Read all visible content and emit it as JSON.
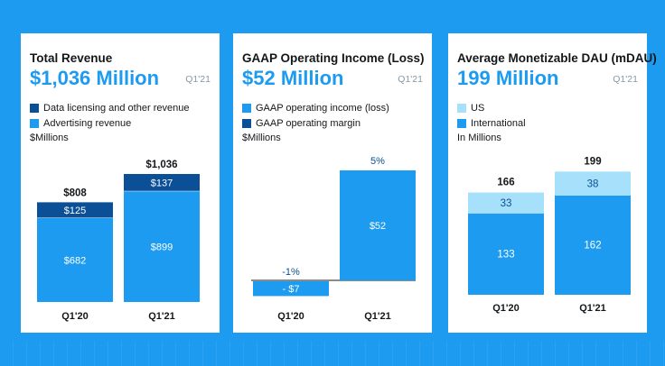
{
  "colors": {
    "background": "#1d9bf0",
    "primary_bar": "#1d9bf0",
    "dark_bar": "#0b4f96",
    "light_bar": "#a6e0fb",
    "headline": "#1d9bf0"
  },
  "chart_data": [
    {
      "type": "bar",
      "stacked": true,
      "title": "Total Revenue",
      "headline": "$1,036 Million",
      "period": "Q1'21",
      "units": "$Millions",
      "categories": [
        "Q1'20",
        "Q1'21"
      ],
      "series": [
        {
          "name": "Advertising revenue",
          "values": [
            682,
            899
          ],
          "labels": [
            "$682",
            "$899"
          ],
          "color": "#1d9bf0",
          "label_color": "#ffffff"
        },
        {
          "name": "Data licensing and other revenue",
          "values": [
            125,
            137
          ],
          "labels": [
            "$125",
            "$137"
          ],
          "color": "#0b4f96",
          "label_color": "#ffffff"
        }
      ],
      "legend": [
        {
          "label": "Data licensing and other revenue",
          "color": "#0b4f96"
        },
        {
          "label": "Advertising revenue",
          "color": "#1d9bf0"
        }
      ],
      "totals": [
        "$808",
        "$1,036"
      ],
      "ylim": [
        0,
        1036
      ]
    },
    {
      "type": "bar",
      "title": "GAAP Operating Income (Loss)",
      "headline": "$52 Million",
      "period": "Q1'21",
      "units": "$Millions",
      "categories": [
        "Q1'20",
        "Q1'21"
      ],
      "series": [
        {
          "name": "GAAP operating income (loss)",
          "values": [
            -7,
            52
          ],
          "labels": [
            "- $7",
            "$52"
          ],
          "color": "#1d9bf0",
          "label_color": "#ffffff"
        }
      ],
      "legend": [
        {
          "label": "GAAP operating income (loss)",
          "color": "#1d9bf0"
        },
        {
          "label": "GAAP operating margin",
          "color": "#0b4f96"
        }
      ],
      "margins": [
        "-1%",
        "5%"
      ],
      "ylim": [
        -7,
        52
      ]
    },
    {
      "type": "bar",
      "stacked": true,
      "title": "Average Monetizable DAU (mDAU)",
      "headline": "199 Million",
      "period": "Q1'21",
      "units": "In Millions",
      "categories": [
        "Q1'20",
        "Q1'21"
      ],
      "series": [
        {
          "name": "International",
          "values": [
            133,
            162
          ],
          "labels": [
            "133",
            "162"
          ],
          "color": "#1d9bf0",
          "label_color": "#ffffff"
        },
        {
          "name": "US",
          "values": [
            33,
            38
          ],
          "labels": [
            "33",
            "38"
          ],
          "color": "#a6e0fb",
          "label_color": "#0b4f96"
        }
      ],
      "legend": [
        {
          "label": "US",
          "color": "#a6e0fb"
        },
        {
          "label": "International",
          "color": "#1d9bf0"
        }
      ],
      "totals": [
        "166",
        "199"
      ],
      "ylim": [
        0,
        199
      ]
    }
  ]
}
